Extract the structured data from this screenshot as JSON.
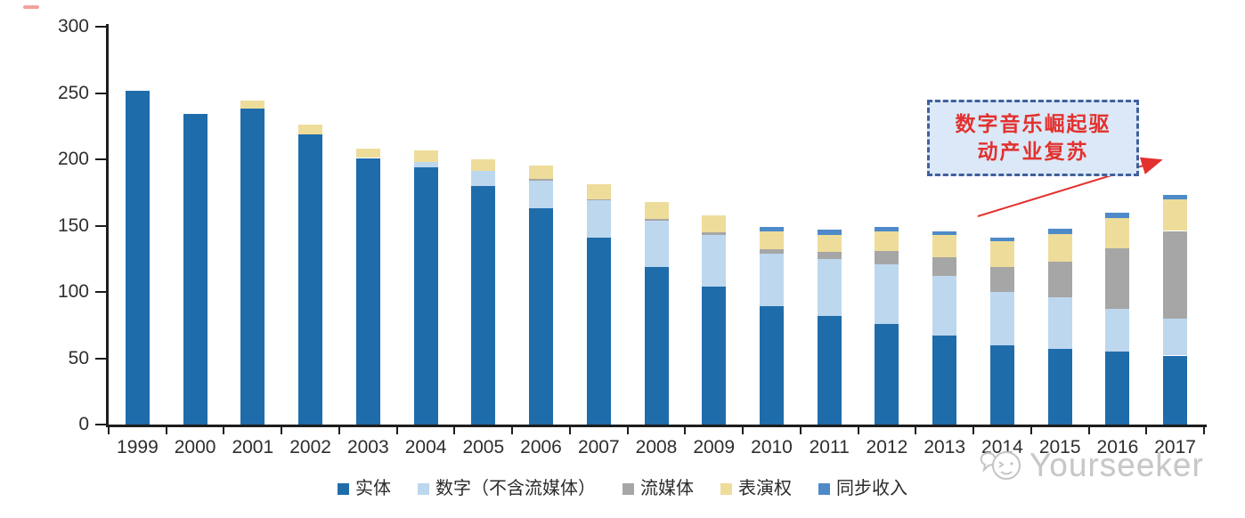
{
  "chart_data": {
    "type": "bar",
    "stacked": true,
    "title": "",
    "xlabel": "",
    "ylabel": "",
    "x": [
      "1999",
      "2000",
      "2001",
      "2002",
      "2003",
      "2004",
      "2005",
      "2006",
      "2007",
      "2008",
      "2009",
      "2010",
      "2011",
      "2012",
      "2013",
      "2014",
      "2015",
      "2016",
      "2017"
    ],
    "series": [
      {
        "name": "实体",
        "color": "#1f6cab",
        "values": [
          252,
          234,
          238,
          219,
          201,
          194,
          180,
          163,
          141,
          119,
          104,
          89,
          82,
          76,
          67,
          60,
          57,
          55,
          52
        ]
      },
      {
        "name": "数字（不含流媒体）",
        "color": "#bdd7ee",
        "values": [
          0,
          0,
          0,
          0,
          0,
          4,
          11,
          21,
          28,
          35,
          39,
          40,
          43,
          45,
          45,
          40,
          39,
          32,
          28
        ]
      },
      {
        "name": "流媒体",
        "color": "#a6a6a6",
        "values": [
          0,
          0,
          0,
          0,
          0,
          0,
          0,
          1,
          1,
          1,
          2,
          3,
          5,
          10,
          14,
          19,
          27,
          46,
          66
        ]
      },
      {
        "name": "表演权",
        "color": "#eedc9a",
        "values": [
          0,
          0,
          6,
          7,
          7,
          9,
          9,
          10,
          11,
          13,
          13,
          14,
          13,
          15,
          17,
          19,
          21,
          23,
          24
        ]
      },
      {
        "name": "同步收入",
        "color": "#4e8ac8",
        "values": [
          0,
          0,
          0,
          0,
          0,
          0,
          0,
          0,
          0,
          0,
          0,
          3,
          4,
          3,
          3,
          3,
          4,
          4,
          3
        ]
      }
    ],
    "ylim": [
      0,
      300
    ],
    "yticks": [
      0,
      50,
      100,
      150,
      200,
      250,
      300
    ],
    "grid": false,
    "legend_position": "bottom"
  },
  "annotation": {
    "line1": "数字音乐崛起驱",
    "line2": "动产业复苏",
    "text_color": "#e2312e",
    "box_fill": "#dbe8f7",
    "box_border": "#41609c",
    "arrow_color": "#e2312e"
  },
  "watermark": {
    "text": "Yourseeker",
    "color": "#c7c7c7"
  }
}
